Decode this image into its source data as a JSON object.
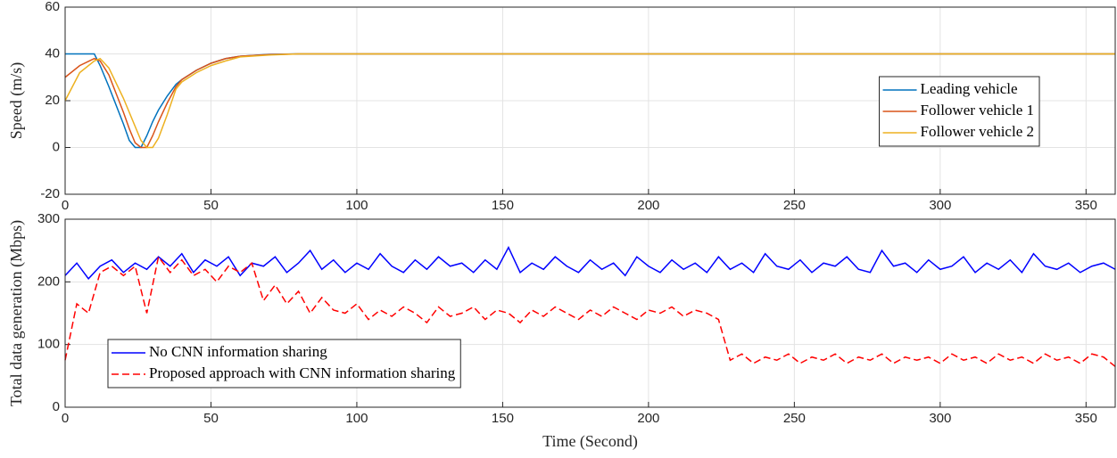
{
  "chart_data": [
    {
      "type": "line",
      "ylabel": "Speed (m/s)",
      "x": [
        0,
        5,
        10,
        12,
        15,
        20,
        22,
        24,
        26,
        28,
        30,
        32,
        35,
        38,
        40,
        45,
        50,
        55,
        60,
        70,
        80,
        100,
        150,
        200,
        250,
        300,
        360
      ],
      "series": [
        {
          "name": "Leading vehicle",
          "color": "#0072bd",
          "values": [
            40,
            40,
            40,
            35,
            26,
            10,
            3,
            0,
            0,
            5,
            11,
            16,
            22,
            27,
            29,
            33,
            36,
            38,
            39,
            39.8,
            40,
            40,
            40,
            40,
            40,
            40,
            40
          ]
        },
        {
          "name": "Follower vehicle 1",
          "color": "#d95319",
          "values": [
            30,
            35,
            38,
            37,
            31,
            15,
            8,
            2,
            0,
            0,
            5,
            11,
            19,
            26,
            29,
            33,
            36,
            38,
            39,
            39.7,
            40,
            40,
            40,
            40,
            40,
            40,
            40
          ]
        },
        {
          "name": "Follower vehicle 2",
          "color": "#edb120",
          "values": [
            20,
            32,
            37,
            38,
            34,
            21,
            15,
            9,
            3,
            0,
            0,
            4,
            14,
            25,
            28,
            32,
            35,
            37,
            38.7,
            39.5,
            40,
            40,
            40,
            40,
            40,
            40,
            40
          ]
        }
      ],
      "xlim": [
        0,
        360
      ],
      "xticks": [
        0,
        50,
        100,
        150,
        200,
        250,
        300,
        350
      ],
      "ylim": [
        -20,
        60
      ],
      "yticks": [
        -20,
        0,
        20,
        40,
        60
      ],
      "grid": true,
      "legend": "east"
    },
    {
      "type": "line",
      "xlabel": "Time (Second)",
      "ylabel": "Total data generation (Mbps)",
      "x": [
        0,
        4,
        8,
        12,
        16,
        20,
        24,
        28,
        32,
        36,
        40,
        44,
        48,
        52,
        56,
        60,
        64,
        68,
        72,
        76,
        80,
        84,
        88,
        92,
        96,
        100,
        104,
        108,
        112,
        116,
        120,
        124,
        128,
        132,
        136,
        140,
        144,
        148,
        152,
        156,
        160,
        164,
        168,
        172,
        176,
        180,
        184,
        188,
        192,
        196,
        200,
        204,
        208,
        212,
        216,
        220,
        224,
        228,
        232,
        236,
        240,
        244,
        248,
        252,
        256,
        260,
        264,
        268,
        272,
        276,
        280,
        284,
        288,
        292,
        296,
        300,
        304,
        308,
        312,
        316,
        320,
        324,
        328,
        332,
        336,
        340,
        344,
        348,
        352,
        356,
        360
      ],
      "series": [
        {
          "name": "No CNN information sharing",
          "color": "#0000ff",
          "dash": false,
          "values": [
            210,
            230,
            205,
            225,
            235,
            215,
            230,
            220,
            240,
            225,
            245,
            215,
            235,
            225,
            240,
            210,
            230,
            225,
            240,
            215,
            230,
            250,
            220,
            235,
            215,
            230,
            220,
            245,
            225,
            215,
            235,
            220,
            240,
            225,
            230,
            215,
            235,
            220,
            255,
            215,
            230,
            220,
            240,
            225,
            215,
            235,
            220,
            230,
            210,
            240,
            225,
            215,
            235,
            220,
            230,
            215,
            240,
            220,
            230,
            215,
            245,
            225,
            220,
            235,
            215,
            230,
            225,
            240,
            220,
            215,
            250,
            225,
            230,
            215,
            235,
            220,
            225,
            240,
            215,
            230,
            220,
            235,
            215,
            245,
            225,
            220,
            230,
            215,
            225,
            230,
            220
          ]
        },
        {
          "name": "Proposed approach with CNN information sharing",
          "color": "#ff0000",
          "dash": true,
          "values": [
            75,
            165,
            150,
            215,
            225,
            210,
            225,
            150,
            240,
            215,
            235,
            210,
            220,
            200,
            225,
            215,
            230,
            170,
            195,
            165,
            185,
            150,
            175,
            155,
            150,
            165,
            140,
            155,
            145,
            160,
            150,
            135,
            160,
            145,
            150,
            160,
            140,
            155,
            150,
            135,
            155,
            145,
            160,
            150,
            140,
            155,
            145,
            160,
            150,
            140,
            155,
            150,
            160,
            145,
            155,
            150,
            140,
            75,
            85,
            70,
            80,
            75,
            85,
            70,
            80,
            75,
            85,
            70,
            80,
            75,
            85,
            70,
            80,
            75,
            80,
            70,
            85,
            75,
            80,
            70,
            85,
            75,
            80,
            70,
            85,
            75,
            80,
            70,
            85,
            80,
            65
          ]
        }
      ],
      "xlim": [
        0,
        360
      ],
      "xticks": [
        0,
        50,
        100,
        150,
        200,
        250,
        300,
        350
      ],
      "ylim": [
        0,
        300
      ],
      "yticks": [
        0,
        100,
        200,
        300
      ],
      "grid": true,
      "legend": "southwest"
    }
  ]
}
